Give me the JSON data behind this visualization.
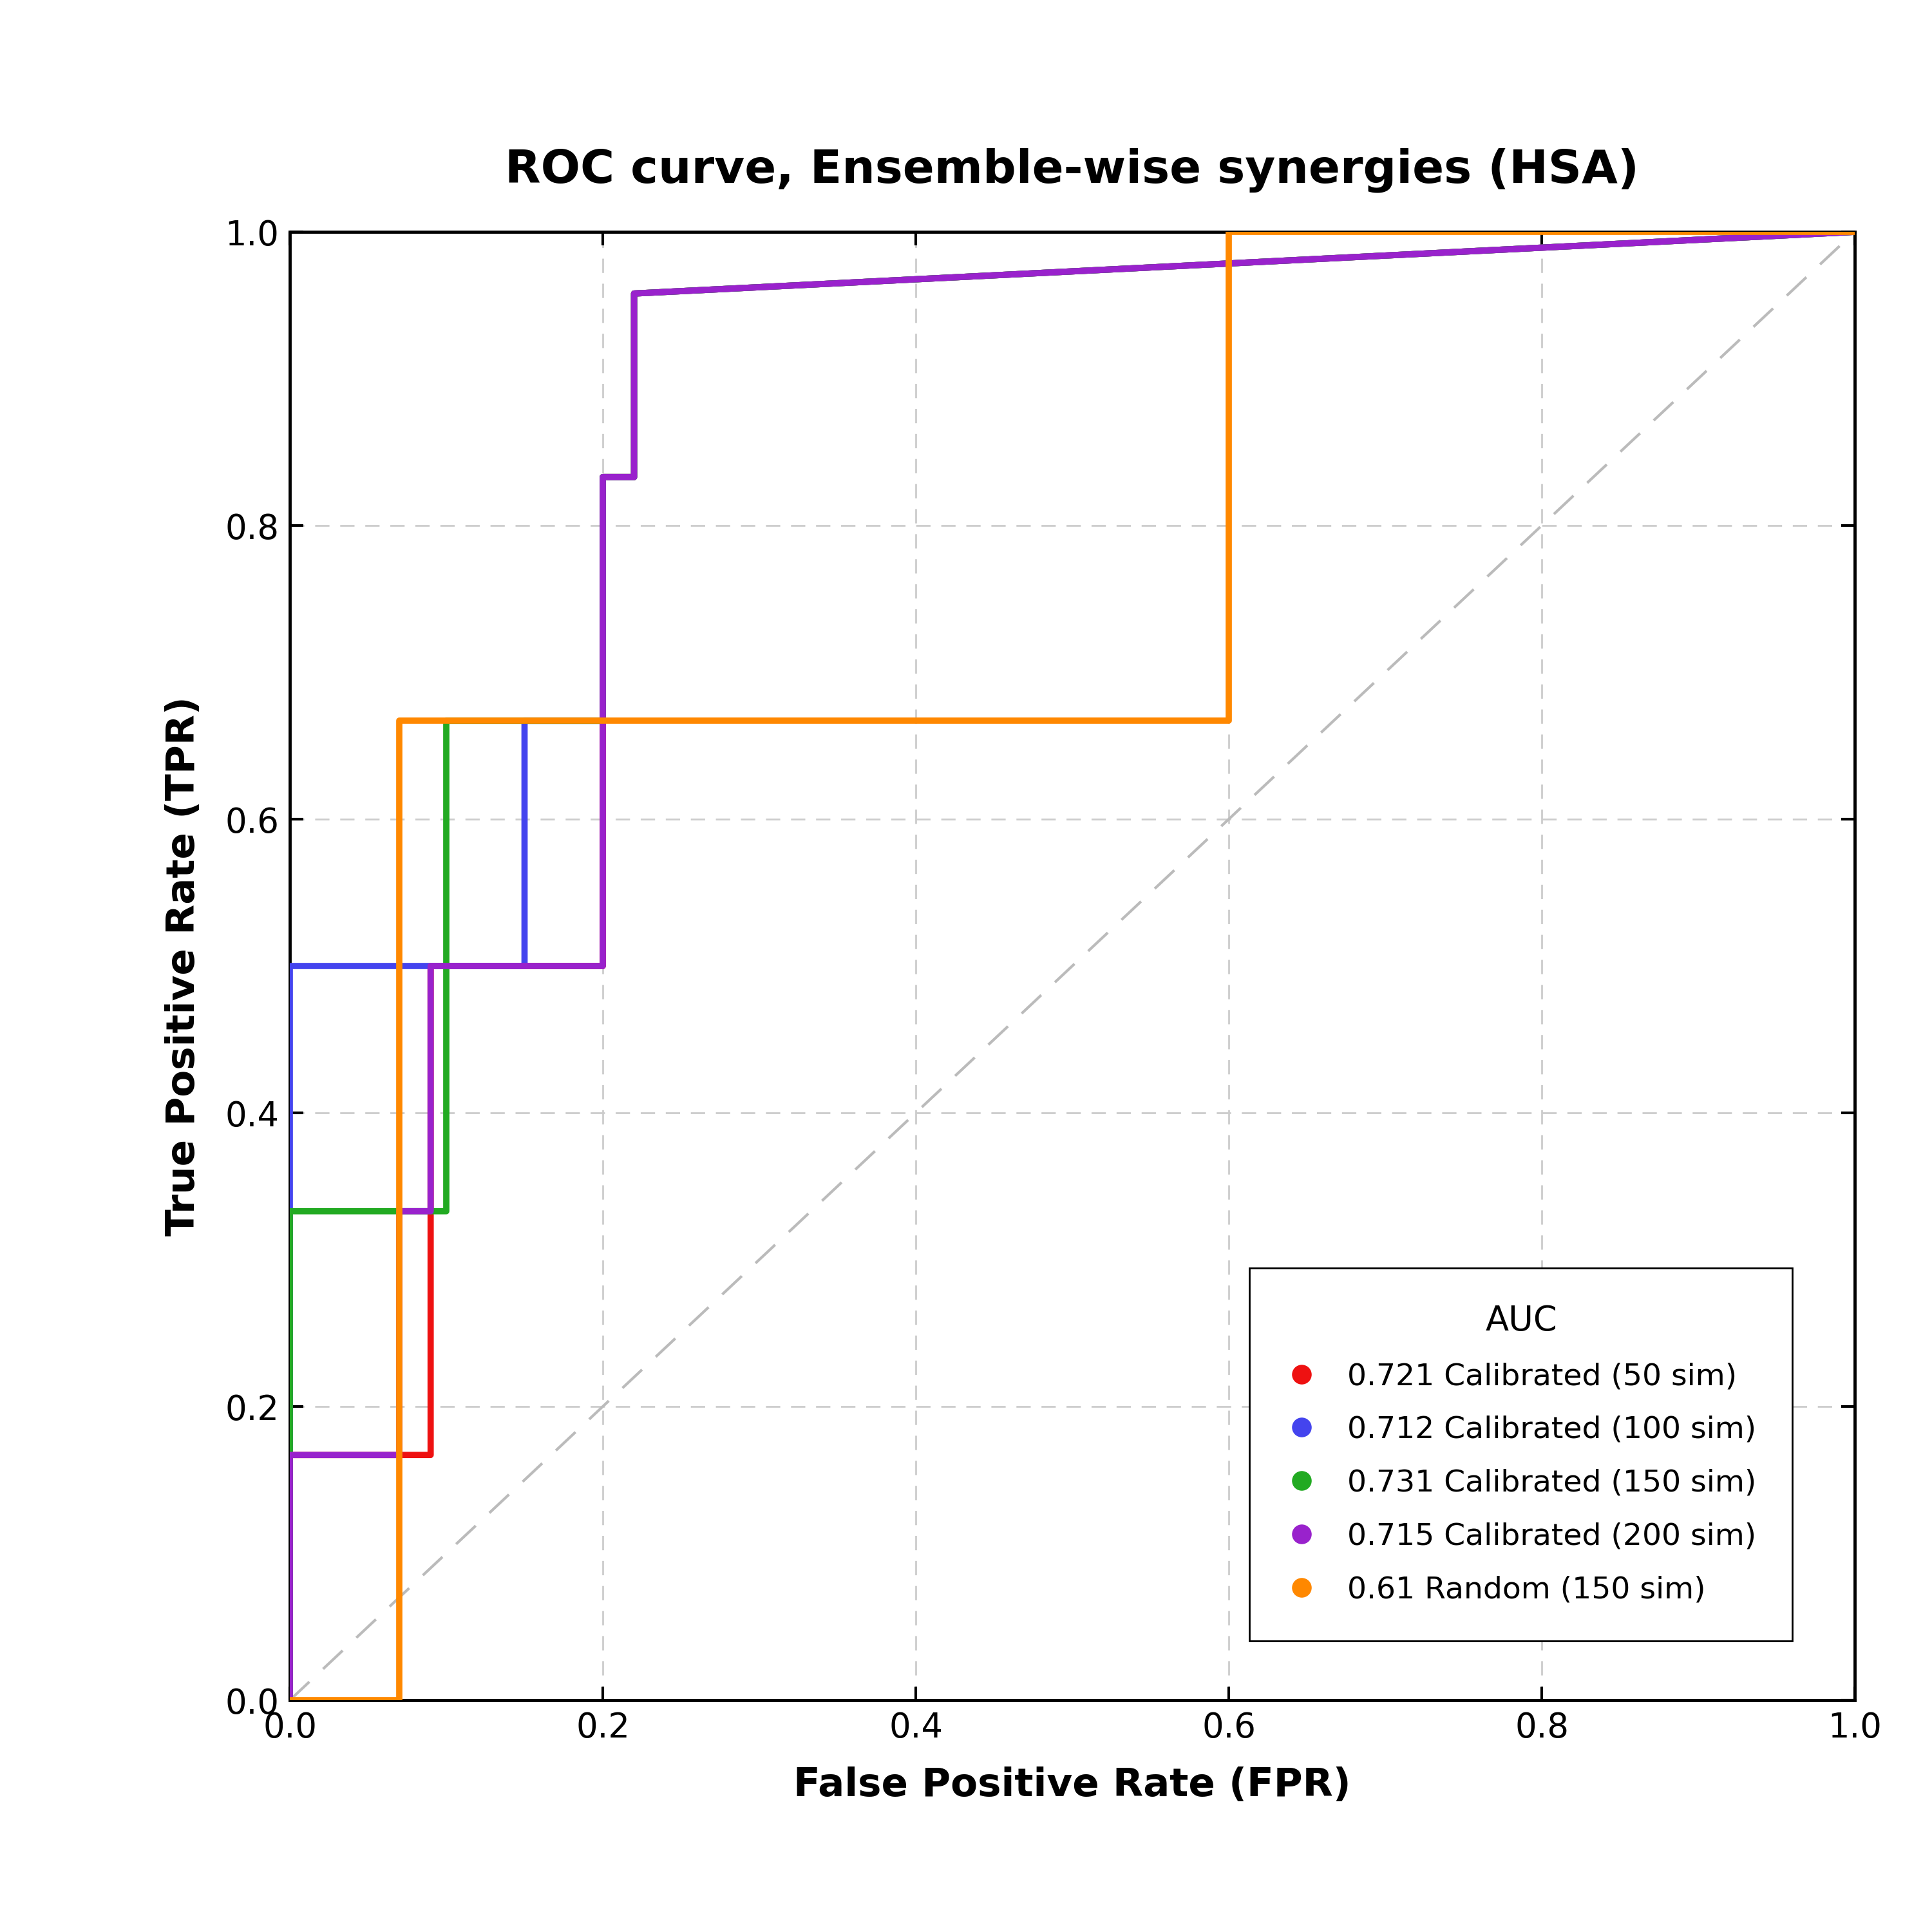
{
  "title": "ROC curve, Ensemble-wise synergies (HSA)",
  "xlabel": "False Positive Rate (FPR)",
  "ylabel": "True Positive Rate (TPR)",
  "xlim": [
    0.0,
    1.0
  ],
  "ylim": [
    0.0,
    1.0
  ],
  "xticks": [
    0.0,
    0.2,
    0.4,
    0.6,
    0.8,
    1.0
  ],
  "yticks": [
    0.0,
    0.2,
    0.4,
    0.6,
    0.8,
    1.0
  ],
  "background_color": "#ffffff",
  "grid_color": "#cccccc",
  "diagonal_color": "#bbbbbb",
  "curves": [
    {
      "label": "0.721 Calibrated (50 sim)",
      "color": "#ee1111",
      "x": [
        0.0,
        0.0,
        0.07,
        0.07,
        0.09,
        0.09,
        0.2,
        0.2,
        0.22,
        0.22,
        1.0
      ],
      "y": [
        0.0,
        0.167,
        0.167,
        0.167,
        0.167,
        0.5,
        0.5,
        0.833,
        0.833,
        0.958,
        1.0
      ]
    },
    {
      "label": "0.712 Calibrated (100 sim)",
      "color": "#4444ee",
      "x": [
        0.0,
        0.0,
        0.15,
        0.15,
        0.2,
        0.2,
        0.22,
        0.22,
        1.0
      ],
      "y": [
        0.0,
        0.5,
        0.5,
        0.667,
        0.667,
        0.833,
        0.833,
        0.958,
        1.0
      ]
    },
    {
      "label": "0.731 Calibrated (150 sim)",
      "color": "#22aa22",
      "x": [
        0.0,
        0.0,
        0.1,
        0.1,
        0.2,
        0.2,
        0.22,
        0.22,
        1.0
      ],
      "y": [
        0.0,
        0.333,
        0.333,
        0.667,
        0.667,
        0.833,
        0.833,
        0.958,
        1.0
      ]
    },
    {
      "label": "0.715 Calibrated (200 sim)",
      "color": "#9922cc",
      "x": [
        0.0,
        0.0,
        0.07,
        0.07,
        0.09,
        0.09,
        0.2,
        0.2,
        0.22,
        0.22,
        1.0
      ],
      "y": [
        0.0,
        0.167,
        0.167,
        0.333,
        0.333,
        0.5,
        0.5,
        0.833,
        0.833,
        0.958,
        1.0
      ]
    },
    {
      "label": "0.61 Random (150 sim)",
      "color": "#ff8800",
      "x": [
        0.0,
        0.0,
        0.07,
        0.07,
        0.22,
        0.22,
        0.6,
        0.6,
        1.0
      ],
      "y": [
        0.0,
        0.0,
        0.0,
        0.667,
        0.667,
        0.667,
        0.667,
        1.0,
        1.0
      ]
    }
  ],
  "legend_title": "AUC",
  "title_fontsize": 52,
  "axis_label_fontsize": 44,
  "tick_fontsize": 38,
  "legend_fontsize": 34,
  "linewidth": 7.0
}
